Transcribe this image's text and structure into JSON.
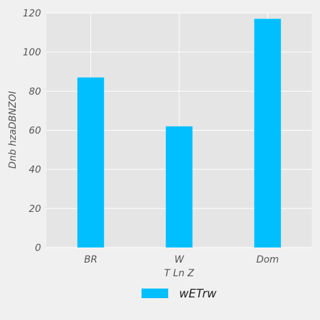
{
  "chart_data": {
    "type": "bar",
    "categories": [
      "BR",
      "W",
      "Dom"
    ],
    "series": [
      {
        "name": "wETrw",
        "values": [
          87,
          62,
          117
        ]
      }
    ],
    "xlabel": "T  Ln Z",
    "ylabel": "Dnb hzaDBNZOI",
    "ylim": [
      0,
      120
    ],
    "yticks": [
      0,
      20,
      40,
      60,
      80,
      100,
      120
    ],
    "grid": true,
    "legend_position": "bottom-center",
    "colors": {
      "bar": "#00bfff",
      "plot_background": "#e5e5e5",
      "page_background": "#f0f0f0",
      "grid": "#ffffff"
    }
  }
}
